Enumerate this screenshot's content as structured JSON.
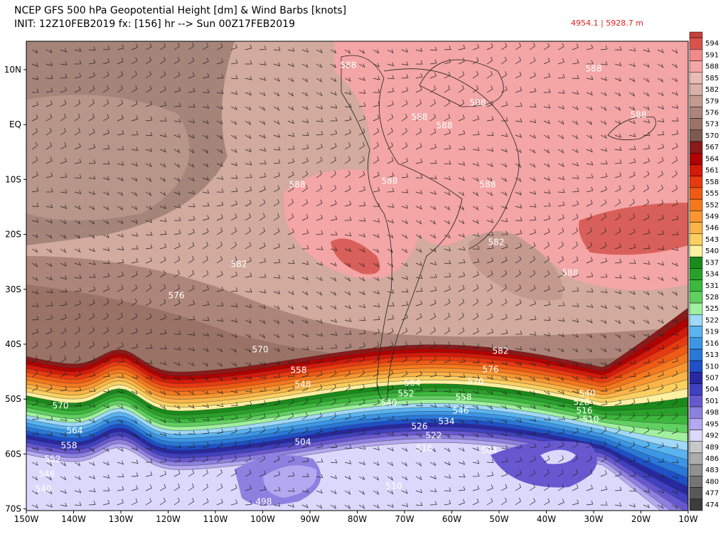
{
  "header": {
    "title": "NCEP GFS 500 hPa Geopotential Height [dm] & Wind Barbs [knots]",
    "subtitle": "INIT: 12Z10FEB2019  fx: [156] hr --> Sun 00Z17FEB2019",
    "readout": "4954.1 | 5928.7 m"
  },
  "lat_labels": [
    "10N",
    "EQ",
    "10S",
    "20S",
    "30S",
    "40S",
    "50S",
    "60S",
    "70S"
  ],
  "lon_labels": [
    "150W",
    "140W",
    "130W",
    "120W",
    "110W",
    "100W",
    "90W",
    "80W",
    "70W",
    "60W",
    "50W",
    "40W",
    "30W",
    "20W",
    "10W"
  ],
  "colorbar": {
    "levels": [
      594,
      591,
      588,
      585,
      582,
      579,
      576,
      573,
      570,
      567,
      564,
      561,
      558,
      555,
      552,
      549,
      546,
      543,
      540,
      537,
      534,
      531,
      528,
      525,
      522,
      519,
      516,
      513,
      510,
      507,
      504,
      501,
      498,
      495,
      492,
      489,
      486,
      483,
      480,
      477,
      474
    ],
    "colors": [
      "#d9534a",
      "#f08a8a",
      "#f4a5a5",
      "#e8bcb2",
      "#d8b0a5",
      "#c49a8e",
      "#ad857a",
      "#9a7266",
      "#7e5a50",
      "#8b1a1a",
      "#b00000",
      "#d41a0a",
      "#e83a10",
      "#f05a14",
      "#f5781e",
      "#f89630",
      "#fab447",
      "#fcd060",
      "#fdf0a0",
      "#1a8a1a",
      "#2aa02a",
      "#3cb83c",
      "#60d060",
      "#a0f0a0",
      "#a0d8f8",
      "#5ab4f0",
      "#3c96e6",
      "#2a78d8",
      "#1e50c8",
      "#2828a0",
      "#4040c0",
      "#6858d0",
      "#8c80e0",
      "#b4a8f0",
      "#dcd8fc",
      "#c8c8c8",
      "#acacac",
      "#909090",
      "#747474",
      "#585858",
      "#3c3c3c"
    ]
  },
  "contour_labels": [
    "588",
    "588",
    "588",
    "588",
    "588",
    "588",
    "588",
    "588",
    "588",
    "582",
    "582",
    "588",
    "576",
    "570",
    "582",
    "576",
    "570",
    "558",
    "548",
    "564",
    "552",
    "540",
    "558",
    "546",
    "534",
    "526",
    "522",
    "516",
    "540",
    "528",
    "516",
    "510",
    "570",
    "564",
    "558",
    "552",
    "546",
    "540",
    "504",
    "504",
    "510",
    "498"
  ]
}
